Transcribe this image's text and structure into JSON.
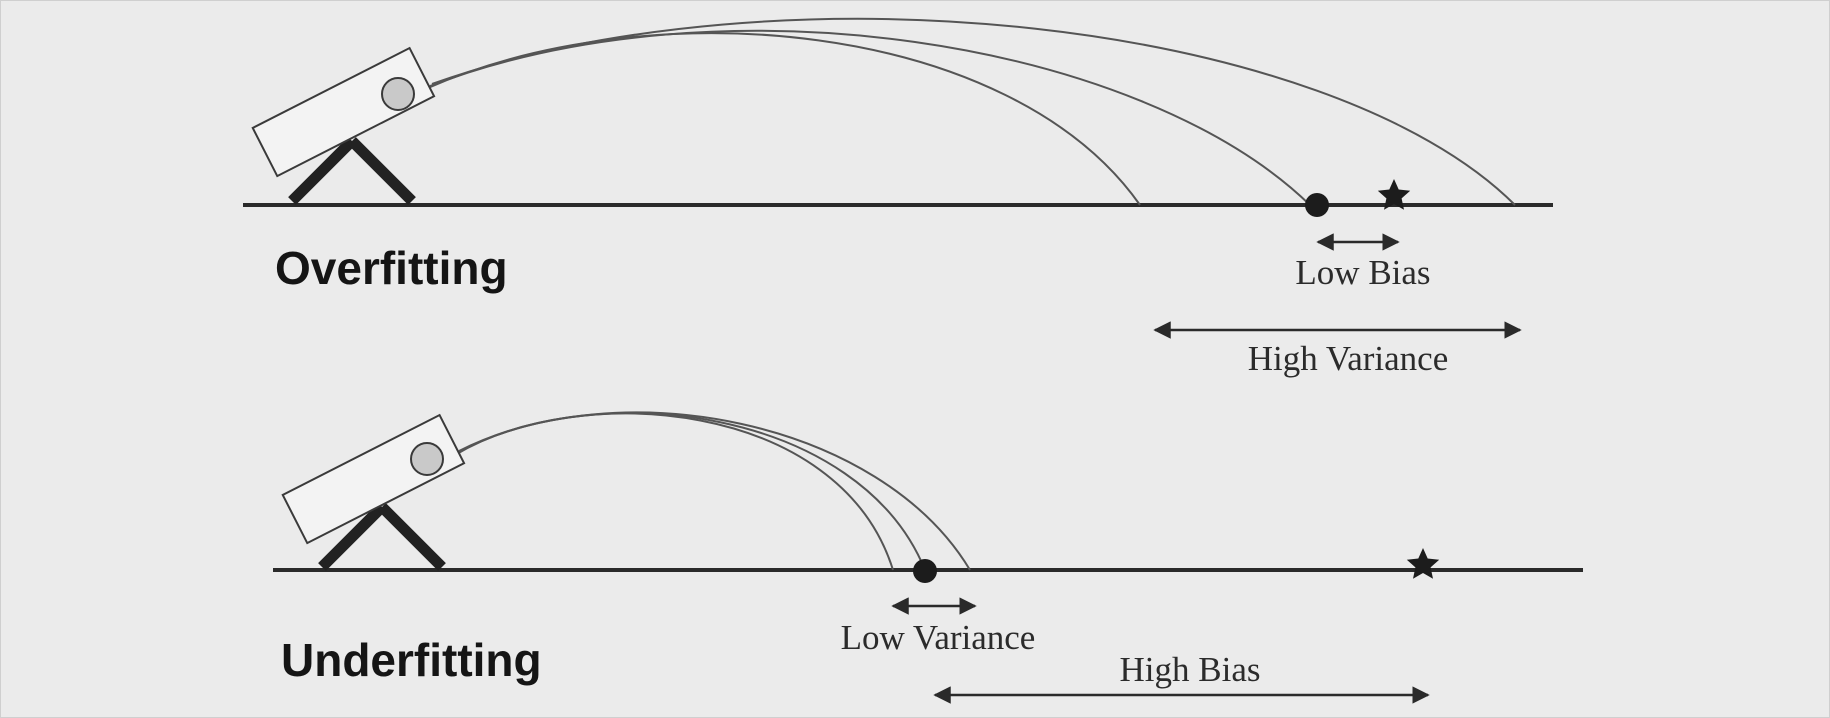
{
  "diagram": {
    "colors": {
      "background": "#ebebeb",
      "ink": "#1c1c1c",
      "trajectory": "#555555",
      "scope": "#c9c9c9"
    },
    "overfitting": {
      "title": "Overfitting",
      "bias_label": "Low Bias",
      "variance_label": "High Variance"
    },
    "underfitting": {
      "title": "Underfitting",
      "variance_label": "Low Variance",
      "bias_label": "High Bias"
    },
    "icons": {
      "launcher": "cannon-launcher-icon",
      "target": "star-target-icon",
      "mean_landing": "filled-dot-icon"
    }
  }
}
